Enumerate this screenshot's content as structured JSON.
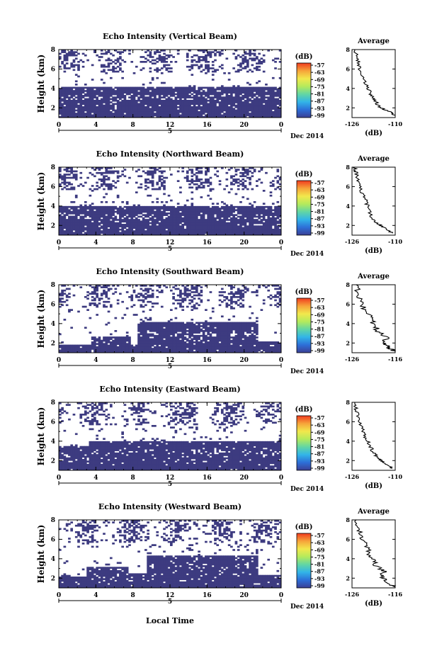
{
  "xlabel": "Local Time",
  "date_label": "Dec 2014",
  "day_label": "5",
  "colorbar": {
    "unit": "(dB)",
    "ticks": [
      "-57",
      "-63",
      "-69",
      "-75",
      "-81",
      "-87",
      "-93",
      "-99"
    ],
    "colors": [
      "#f03b1f",
      "#f6a43a",
      "#f2e84c",
      "#b4ea5c",
      "#62d6a4",
      "#32b4e8",
      "#2d6fd8",
      "#3b3f94"
    ]
  },
  "colors": {
    "echo_fill": "#3d3b80",
    "profile_line": "#000000"
  },
  "chart_data": [
    {
      "type": "heatmap",
      "title": "Echo Intensity (Vertical Beam)",
      "ylabel": "Height (km)",
      "xlim": [
        0,
        24
      ],
      "ylim": [
        1,
        8
      ],
      "xticks": [
        "0",
        "4",
        "8",
        "12",
        "16",
        "20",
        "0"
      ],
      "yticks": [
        "2",
        "4",
        "6",
        "8"
      ],
      "profile": {
        "title": "Average",
        "xlabel": "(dB)",
        "xlim": [
          -126,
          -110
        ],
        "xticks": [
          "-126",
          "-110"
        ],
        "ylim": [
          1,
          8
        ],
        "yticks": [
          "2",
          "4",
          "6",
          "8"
        ],
        "points": [
          [
            -110,
            1.2
          ],
          [
            -112,
            1.6
          ],
          [
            -116,
            2.1
          ],
          [
            -117.5,
            2.8
          ],
          [
            -119,
            3.4
          ],
          [
            -120.5,
            4.2
          ],
          [
            -121.5,
            5.0
          ],
          [
            -123,
            6.0
          ],
          [
            -124,
            7.0
          ],
          [
            -125,
            8.0
          ]
        ]
      }
    },
    {
      "type": "heatmap",
      "title": "Echo Intensity (Northward Beam)",
      "ylabel": "Height (km)",
      "xlim": [
        0,
        24
      ],
      "ylim": [
        1,
        8
      ],
      "xticks": [
        "0",
        "4",
        "8",
        "12",
        "16",
        "20",
        "0"
      ],
      "yticks": [
        "2",
        "4",
        "6",
        "8"
      ],
      "profile": {
        "title": "Average",
        "xlabel": "(dB)",
        "xlim": [
          -126,
          -110
        ],
        "xticks": [
          "-126",
          "-110"
        ],
        "ylim": [
          1,
          8
        ],
        "yticks": [
          "2",
          "4",
          "6",
          "8"
        ],
        "points": [
          [
            -111,
            1.2
          ],
          [
            -114,
            1.8
          ],
          [
            -117,
            2.3
          ],
          [
            -119,
            3.0
          ],
          [
            -120,
            3.8
          ],
          [
            -121,
            4.6
          ],
          [
            -122.5,
            5.5
          ],
          [
            -123.5,
            6.5
          ],
          [
            -124.5,
            7.4
          ],
          [
            -125,
            8.0
          ]
        ]
      }
    },
    {
      "type": "heatmap",
      "title": "Echo Intensity (Southward Beam)",
      "ylabel": "Height (km)",
      "xlim": [
        0,
        24
      ],
      "ylim": [
        1,
        8
      ],
      "xticks": [
        "0",
        "4",
        "8",
        "12",
        "16",
        "20",
        "0"
      ],
      "yticks": [
        "2",
        "4",
        "6",
        "8"
      ],
      "profile": {
        "title": "Average",
        "xlabel": "",
        "xlim": [
          -126,
          -116
        ],
        "xticks": [
          "-126",
          "-116"
        ],
        "ylim": [
          1,
          8
        ],
        "yticks": [
          "2",
          "4",
          "6",
          "8"
        ],
        "points": [
          [
            -116,
            1.1
          ],
          [
            -117.5,
            1.5
          ],
          [
            -118.5,
            2.0
          ],
          [
            -118,
            2.6
          ],
          [
            -120,
            3.2
          ],
          [
            -121,
            4.0
          ],
          [
            -122,
            4.8
          ],
          [
            -123.5,
            5.8
          ],
          [
            -124.5,
            6.8
          ],
          [
            -125,
            8.0
          ]
        ]
      }
    },
    {
      "type": "heatmap",
      "title": "Echo Intensity (Eastward Beam)",
      "ylabel": "Height (km)",
      "xlim": [
        0,
        24
      ],
      "ylim": [
        1,
        8
      ],
      "xticks": [
        "0",
        "4",
        "8",
        "12",
        "16",
        "20",
        "0"
      ],
      "yticks": [
        "2",
        "4",
        "6",
        "8"
      ],
      "profile": {
        "title": "",
        "xlabel": "(dB)",
        "xlim": [
          -126,
          -110
        ],
        "xticks": [
          "-126",
          "-110"
        ],
        "ylim": [
          1,
          8
        ],
        "yticks": [
          "2",
          "4",
          "6",
          "8"
        ],
        "points": [
          [
            -111,
            1.2
          ],
          [
            -114,
            1.7
          ],
          [
            -116,
            2.2
          ],
          [
            -118,
            2.8
          ],
          [
            -119.5,
            3.6
          ],
          [
            -121,
            4.4
          ],
          [
            -122,
            5.2
          ],
          [
            -123.5,
            6.2
          ],
          [
            -124.5,
            7.2
          ],
          [
            -125,
            8.0
          ]
        ]
      }
    },
    {
      "type": "heatmap",
      "title": "Echo Intensity (Westward Beam)",
      "ylabel": "Height (km)",
      "xlim": [
        0,
        24
      ],
      "ylim": [
        1,
        8
      ],
      "xticks": [
        "0",
        "4",
        "8",
        "12",
        "16",
        "20",
        "0"
      ],
      "yticks": [
        "2",
        "4",
        "6",
        "8"
      ],
      "profile": {
        "title": "Average",
        "xlabel": "(dB)",
        "xlim": [
          -126,
          -116
        ],
        "xticks": [
          "-126",
          "-116"
        ],
        "ylim": [
          1,
          8
        ],
        "yticks": [
          "2",
          "4",
          "6",
          "8"
        ],
        "points": [
          [
            -116,
            1.1
          ],
          [
            -118,
            1.6
          ],
          [
            -119,
            2.2
          ],
          [
            -118.5,
            2.7
          ],
          [
            -120.5,
            3.3
          ],
          [
            -121.5,
            4.1
          ],
          [
            -122.5,
            5.0
          ],
          [
            -123.5,
            6.0
          ],
          [
            -124.5,
            7.0
          ],
          [
            -125,
            8.0
          ]
        ]
      }
    }
  ]
}
